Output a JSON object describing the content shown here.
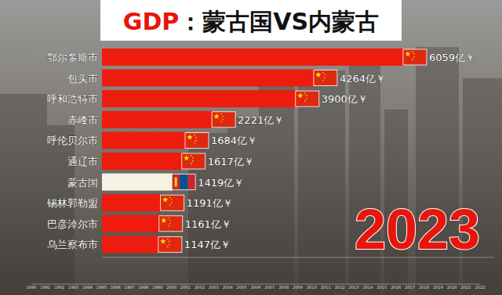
{
  "chart_data": {
    "type": "bar",
    "orientation": "horizontal",
    "title": "GDP：蒙古国VS内蒙古",
    "categories": [
      "鄂尔多斯市",
      "包头市",
      "呼和浩特市",
      "赤峰市",
      "呼伦贝尔市",
      "通辽市",
      "蒙古国",
      "锡林郭勒盟",
      "巴彦淖尔市",
      "乌兰察布市"
    ],
    "values": [
      6059,
      4264,
      3900,
      2221,
      1684,
      1617,
      1419,
      1191,
      1161,
      1147
    ],
    "value_labels": [
      "6059亿￥",
      "4264亿￥",
      "3900亿￥",
      "2221亿￥",
      "1684亿￥",
      "1617亿￥",
      "1419亿￥",
      "1191亿￥",
      "1161亿￥",
      "1147亿￥"
    ],
    "colors": [
      "#ee1c0e",
      "#ee1c0e",
      "#ee1c0e",
      "#ee1c0e",
      "#ee1c0e",
      "#ee1c0e",
      "#f6f1e2",
      "#ee1c0e",
      "#ee1c0e",
      "#ee1c0e"
    ],
    "xlim": [
      0,
      7870
    ],
    "xticks": [],
    "tick_labels": false,
    "data_labels": true,
    "grid": false,
    "annotation": "2023",
    "timeline": [
      1990,
      1991,
      1992,
      1993,
      1994,
      1995,
      1996,
      1997,
      1998,
      1999,
      2000,
      2001,
      2002,
      2003,
      2004,
      2005,
      2006,
      2007,
      2008,
      2009,
      2010,
      2011,
      2012,
      2013,
      2014,
      2015,
      2016,
      2017,
      2018,
      2019,
      2020,
      2021,
      2022
    ]
  }
}
